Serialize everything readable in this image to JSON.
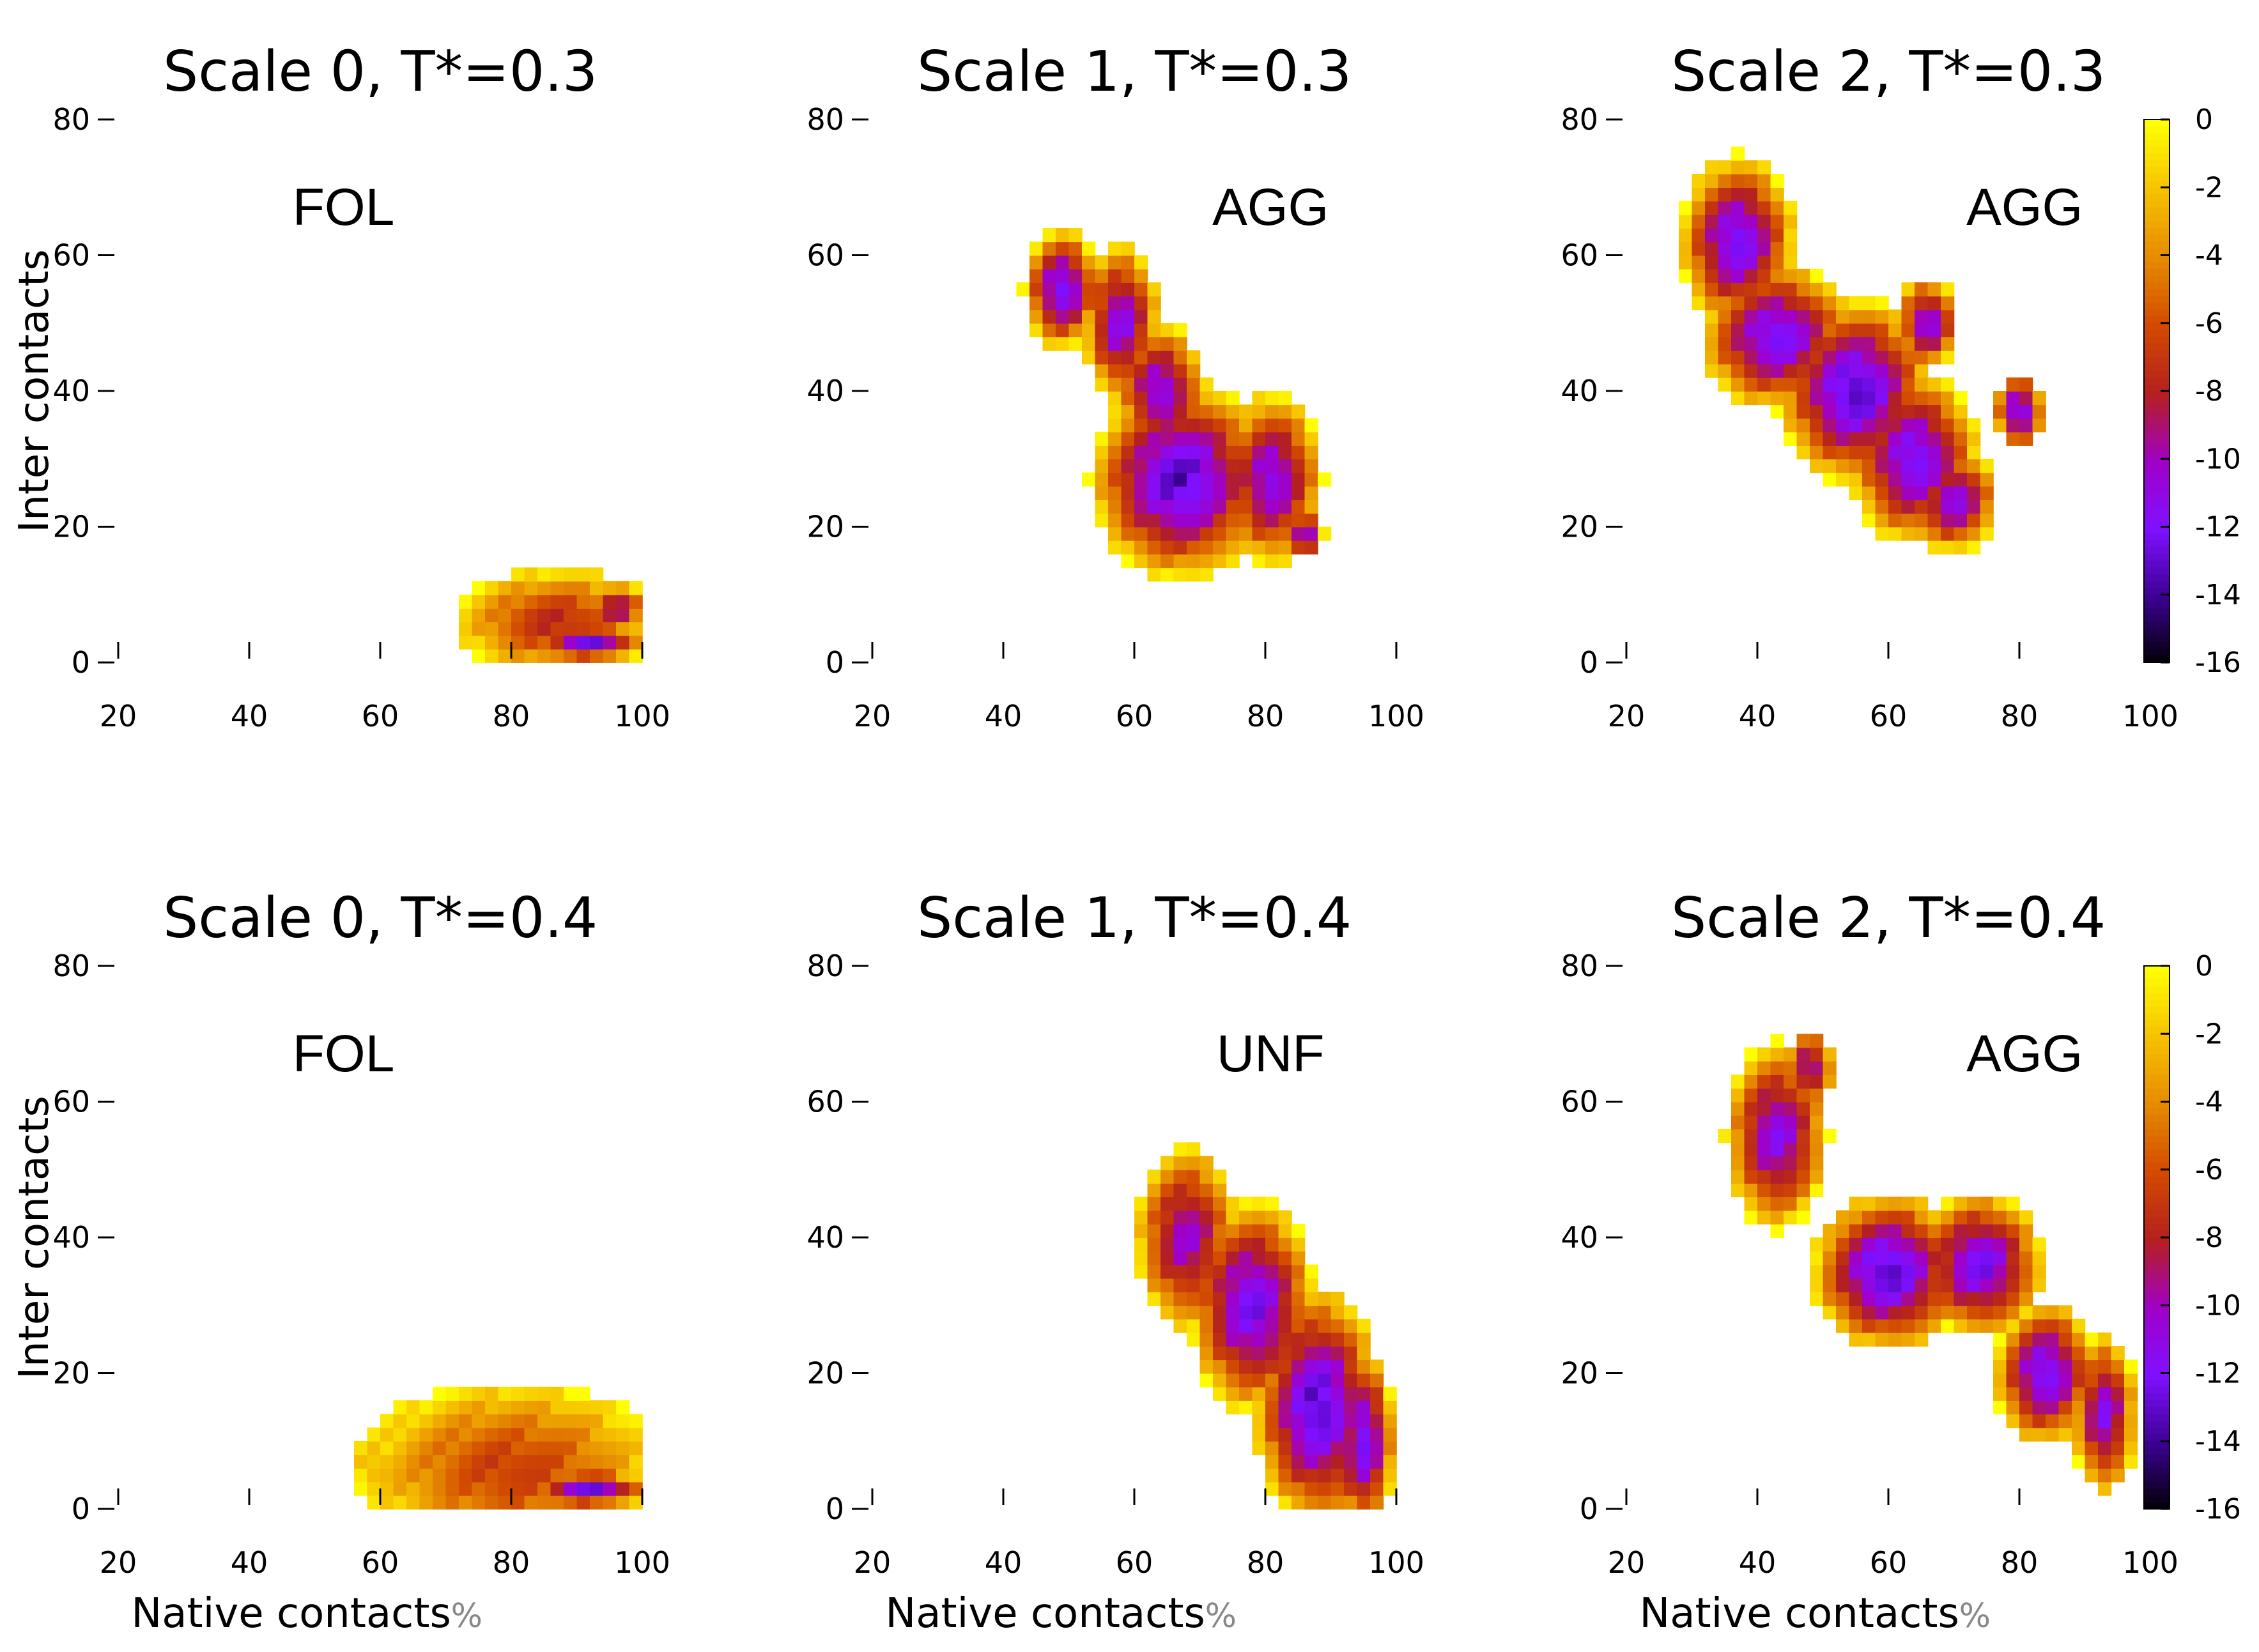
{
  "chart_data": {
    "type": "heatmap",
    "x_label": "Native contacts",
    "x_unit": "%",
    "y_label": "Inter contacts",
    "x_ticks": [
      "20",
      "40",
      "60",
      "80",
      "100"
    ],
    "y_ticks": [
      "0",
      "20",
      "40",
      "60",
      "80"
    ],
    "xlim": [
      20,
      100
    ],
    "ylim": [
      0,
      80
    ],
    "colorbar": {
      "range": [
        -16,
        0
      ],
      "ticks": [
        "0",
        "-2",
        "-4",
        "-6",
        "-8",
        "-10",
        "-12",
        "-14",
        "-16"
      ],
      "colormap": [
        "#000000",
        "#3b0090",
        "#7f10ff",
        "#a000c8",
        "#b42020",
        "#d24a00",
        "#e68a00",
        "#f6c200",
        "#ffff00"
      ]
    },
    "panels": [
      {
        "title": "Scale 0, T*=0.3",
        "state": "FOL",
        "blobs": [
          {
            "x": 87,
            "y": 6,
            "rx": 16,
            "ry": 8,
            "min": -8
          },
          {
            "x": 92,
            "y": 3,
            "rx": 9,
            "ry": 3,
            "min": -13
          },
          {
            "x": 96,
            "y": 8,
            "rx": 5,
            "ry": 4,
            "min": -10
          }
        ]
      },
      {
        "title": "Scale 1, T*=0.3",
        "state": "AGG",
        "blobs": [
          {
            "x": 49,
            "y": 55,
            "rx": 6,
            "ry": 9,
            "min": -13
          },
          {
            "x": 58,
            "y": 50,
            "rx": 6,
            "ry": 12,
            "min": -12
          },
          {
            "x": 64,
            "y": 40,
            "rx": 7,
            "ry": 10,
            "min": -12
          },
          {
            "x": 67,
            "y": 27,
            "rx": 14,
            "ry": 15,
            "min": -14
          },
          {
            "x": 81,
            "y": 27,
            "rx": 8,
            "ry": 13,
            "min": -12
          },
          {
            "x": 86,
            "y": 19,
            "rx": 3,
            "ry": 4,
            "min": -12
          }
        ]
      },
      {
        "title": "Scale 2, T*=0.3",
        "state": "AGG",
        "blobs": [
          {
            "x": 37,
            "y": 62,
            "rx": 9,
            "ry": 13,
            "min": -13
          },
          {
            "x": 43,
            "y": 48,
            "rx": 12,
            "ry": 11,
            "min": -13
          },
          {
            "x": 55,
            "y": 40,
            "rx": 12,
            "ry": 14,
            "min": -14
          },
          {
            "x": 64,
            "y": 30,
            "rx": 10,
            "ry": 13,
            "min": -13
          },
          {
            "x": 70,
            "y": 24,
            "rx": 7,
            "ry": 8,
            "min": -12
          },
          {
            "x": 66,
            "y": 50,
            "rx": 5,
            "ry": 7,
            "min": -12
          },
          {
            "x": 80,
            "y": 37,
            "rx": 4,
            "ry": 6,
            "min": -13
          }
        ]
      },
      {
        "title": "Scale 0, T*=0.4",
        "state": "FOL",
        "blobs": [
          {
            "x": 80,
            "y": 6,
            "rx": 24,
            "ry": 13,
            "min": -7
          },
          {
            "x": 92,
            "y": 3,
            "rx": 10,
            "ry": 3,
            "min": -13
          },
          {
            "x": 60,
            "y": 6,
            "rx": 5,
            "ry": 5,
            "min": -3
          }
        ]
      },
      {
        "title": "Scale 1, T*=0.4",
        "state": "UNF",
        "blobs": [
          {
            "x": 68,
            "y": 40,
            "rx": 8,
            "ry": 14,
            "min": -11
          },
          {
            "x": 78,
            "y": 30,
            "rx": 10,
            "ry": 16,
            "min": -13
          },
          {
            "x": 88,
            "y": 15,
            "rx": 10,
            "ry": 18,
            "min": -14
          },
          {
            "x": 95,
            "y": 10,
            "rx": 5,
            "ry": 14,
            "min": -13
          }
        ]
      },
      {
        "title": "Scale 2, T*=0.4",
        "state": "AGG",
        "blobs": [
          {
            "x": 43,
            "y": 55,
            "rx": 8,
            "ry": 14,
            "min": -12
          },
          {
            "x": 60,
            "y": 35,
            "rx": 12,
            "ry": 12,
            "min": -14
          },
          {
            "x": 74,
            "y": 36,
            "rx": 10,
            "ry": 11,
            "min": -13
          },
          {
            "x": 84,
            "y": 20,
            "rx": 8,
            "ry": 11,
            "min": -13
          },
          {
            "x": 93,
            "y": 14,
            "rx": 5,
            "ry": 12,
            "min": -12
          },
          {
            "x": 48,
            "y": 65,
            "rx": 4,
            "ry": 6,
            "min": -11
          }
        ]
      }
    ]
  }
}
